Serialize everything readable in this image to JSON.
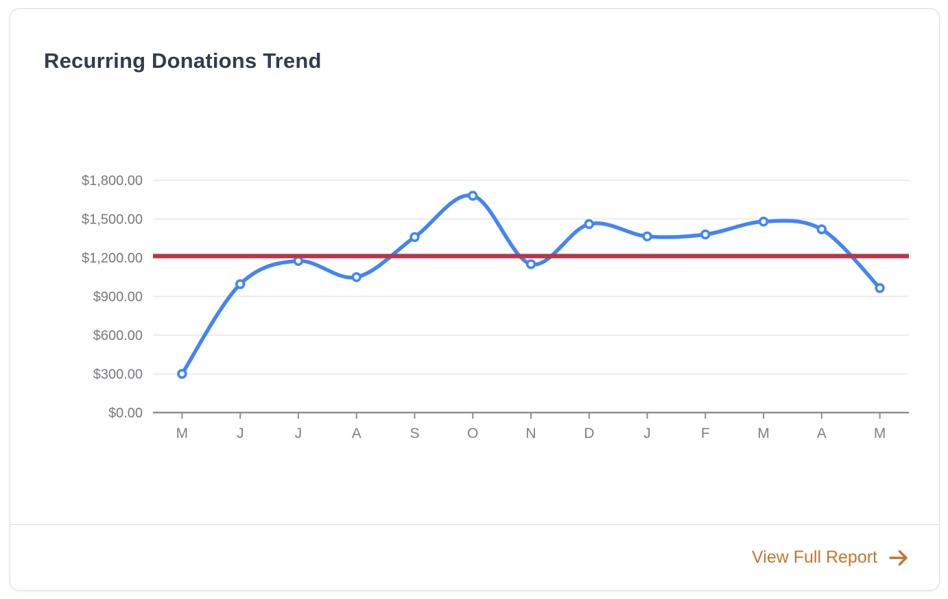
{
  "card": {
    "title": "Recurring Donations Trend",
    "footer": {
      "link_label": "View Full Report",
      "arrow_icon": "arrow-right"
    }
  },
  "chart_data": {
    "type": "line",
    "title": "Recurring Donations Trend",
    "categories": [
      "M",
      "J",
      "J",
      "A",
      "S",
      "O",
      "N",
      "D",
      "J",
      "F",
      "M",
      "A",
      "M"
    ],
    "series": [
      {
        "name": "Recurring Donations",
        "values": [
          300,
          995,
          1175,
          1050,
          1360,
          1680,
          1150,
          1460,
          1365,
          1380,
          1480,
          1420,
          965
        ]
      }
    ],
    "reference_line": {
      "value": 1213,
      "color": "#B23A48"
    },
    "y_ticks": [
      {
        "value": 0,
        "label": "$0.00"
      },
      {
        "value": 300,
        "label": "$300.00"
      },
      {
        "value": 600,
        "label": "$600.00"
      },
      {
        "value": 900,
        "label": "$900.00"
      },
      {
        "value": 1200,
        "label": "$1,200.00"
      },
      {
        "value": 1500,
        "label": "$1,500.00"
      },
      {
        "value": 1800,
        "label": "$1,800.00"
      }
    ],
    "ylim": [
      0,
      1800
    ],
    "xlabel": "",
    "ylabel": "",
    "grid": true,
    "legend_position": "none",
    "curve": "smooth",
    "colors": {
      "line": "#4285F4",
      "marker_fill": "#FFFFFF",
      "reference": "#B23A48",
      "gridline": "#E8EBF2",
      "axis_line": "#8A8F96",
      "y_tick_label": "#75787E",
      "x_tick_label": "#7E8187",
      "title": "#333B4E",
      "link": "#C0772E"
    }
  }
}
